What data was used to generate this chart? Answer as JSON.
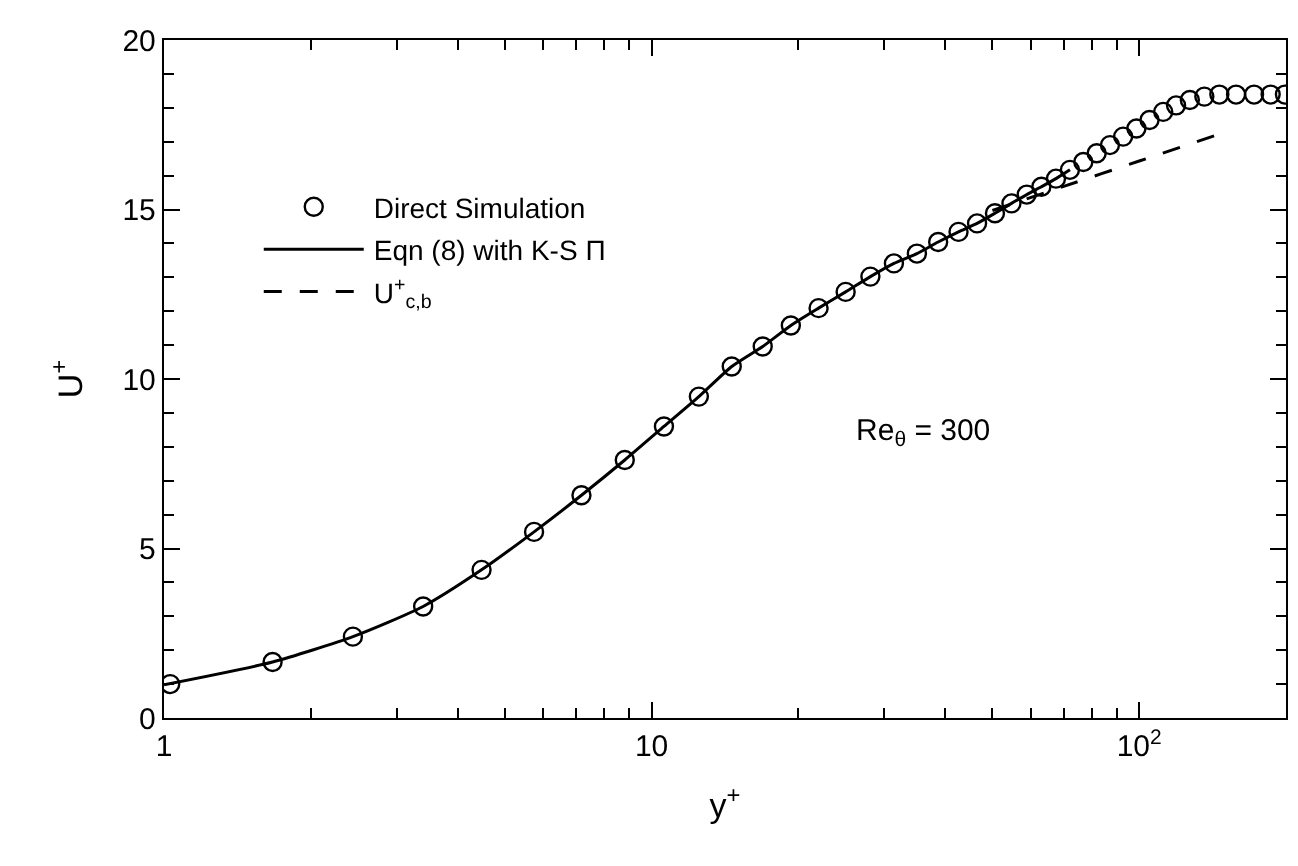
{
  "chart_data": {
    "type": "line",
    "xlabel": "y$^{+}$",
    "ylabel": "U$^{+}$",
    "log": "x",
    "xlim": [
      1,
      200
    ],
    "ylim": [
      0,
      20
    ],
    "xticks": [
      1,
      10,
      {
        "value": 100,
        "label": "10$^{2}$"
      }
    ],
    "yticks": [
      0,
      5,
      10,
      15,
      20
    ],
    "legend": "top left",
    "annotations": [
      "Re$_{θ}$ = 300"
    ],
    "series": [
      {
        "name": "Direct Simulation",
        "type": "scatter",
        "marker": "circle",
        "color": "#000000",
        "x": [
          1.03,
          1.67,
          2.44,
          3.4,
          4.48,
          5.74,
          7.18,
          8.81,
          10.6,
          12.5,
          14.6,
          16.9,
          19.3,
          22,
          25,
          28.1,
          31.4,
          35,
          38.7,
          42.6,
          46.5,
          50.6,
          54.7,
          58.8,
          63,
          67.5,
          72.1,
          76.8,
          81.8,
          87.1,
          92.7,
          98.7,
          105,
          112,
          119,
          127,
          136,
          146,
          158,
          172,
          186,
          199
        ],
        "values": [
          1.0,
          1.65,
          2.4,
          3.29,
          4.37,
          5.49,
          6.57,
          7.61,
          8.6,
          9.48,
          10.37,
          10.96,
          11.58,
          12.09,
          12.57,
          13.02,
          13.41,
          13.7,
          14.04,
          14.34,
          14.59,
          14.89,
          15.18,
          15.44,
          15.67,
          15.91,
          16.17,
          16.4,
          16.66,
          16.9,
          17.15,
          17.39,
          17.64,
          17.88,
          18.07,
          18.23,
          18.33,
          18.39,
          18.39,
          18.39,
          18.39,
          18.39
        ]
      },
      {
        "name": "Eqn (8) with K-S Π",
        "line_style": "solid",
        "color": "#000000",
        "x": [
          1,
          1.67,
          2.44,
          3.4,
          4.48,
          5.74,
          7.18,
          8.81,
          10.6,
          12.5,
          14.6,
          16.9,
          19.3,
          22,
          25,
          28.1,
          31.4,
          35,
          38.7,
          42.6,
          46.5,
          50.6,
          54.7,
          58.8,
          63,
          67.5,
          72.1
        ],
        "values": [
          0.98,
          1.65,
          2.4,
          3.29,
          4.37,
          5.49,
          6.57,
          7.61,
          8.6,
          9.48,
          10.37,
          10.96,
          11.58,
          12.09,
          12.57,
          13.02,
          13.41,
          13.7,
          14.04,
          14.34,
          14.59,
          14.89,
          15.18,
          15.44,
          15.67,
          15.91,
          16.17
        ]
      },
      {
        "name": "U$^{+}$$_{c,b}$",
        "line_style": "dashed",
        "color": "#000000",
        "x": [
          50,
          70,
          100,
          145
        ],
        "values": [
          14.97,
          15.68,
          16.43,
          17.21
        ]
      }
    ]
  }
}
